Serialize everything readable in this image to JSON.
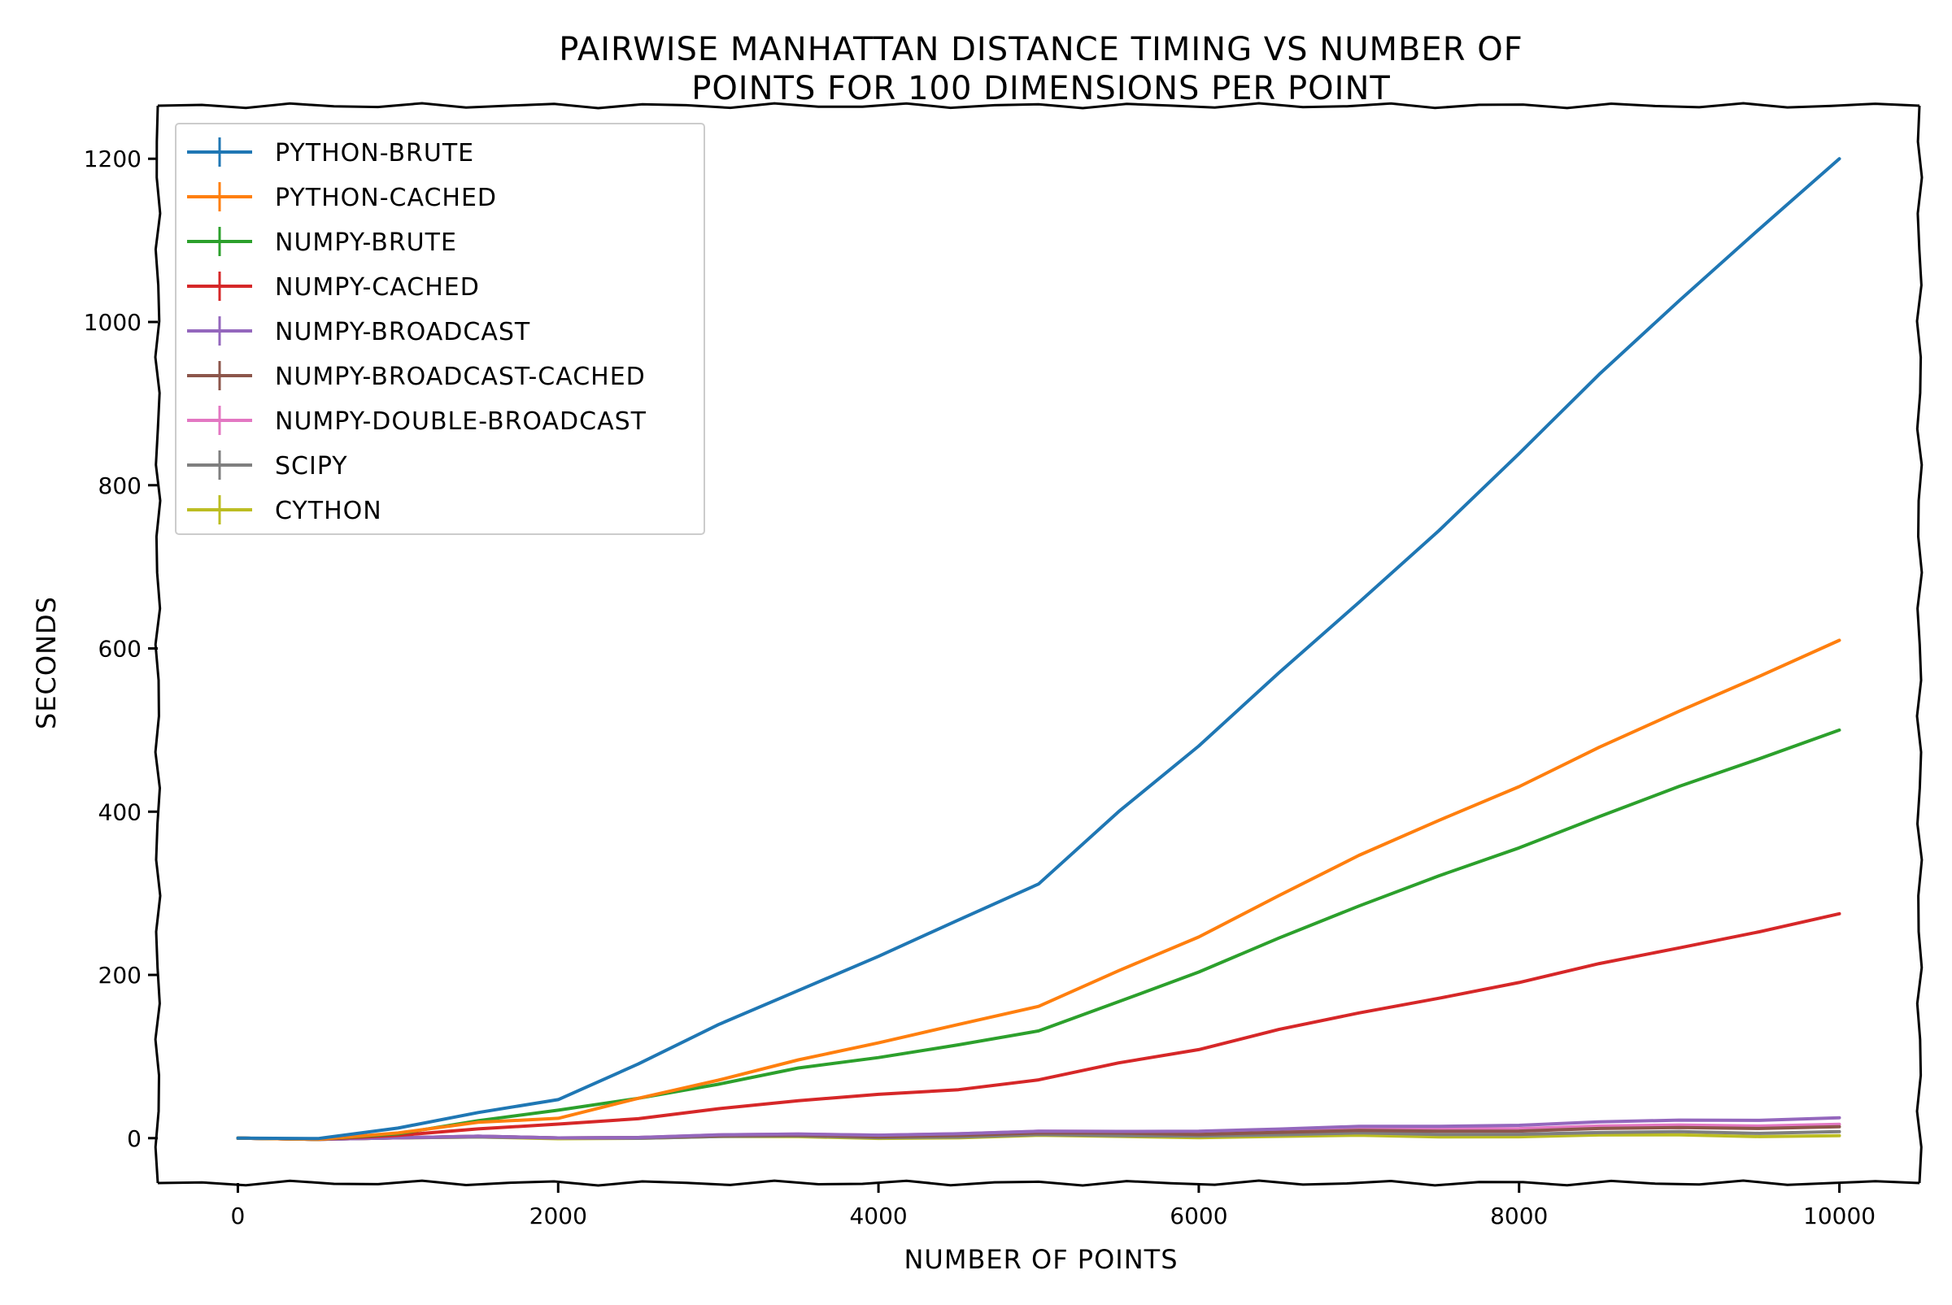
{
  "chart_data": {
    "type": "line",
    "title_lines": [
      "Pairwise Manhattan Distance Timing vs Number of",
      "Points for 100 Dimensions per Point"
    ],
    "xlabel": "Number of Points",
    "ylabel": "Seconds",
    "xlim": [
      -500,
      10500
    ],
    "ylim": [
      -55,
      1265
    ],
    "xticks": [
      0,
      2000,
      4000,
      6000,
      8000,
      10000
    ],
    "yticks": [
      0,
      200,
      400,
      600,
      800,
      1000,
      1200
    ],
    "xtick_labels": [
      "0",
      "2000",
      "4000",
      "6000",
      "8000",
      "10000"
    ],
    "ytick_labels": [
      "0",
      "200",
      "400",
      "600",
      "800",
      "1000",
      "1200"
    ],
    "legend_position": "upper-left",
    "grid": false,
    "x": [
      0,
      500,
      1000,
      1500,
      2000,
      2500,
      3000,
      3500,
      4000,
      4500,
      5000,
      5500,
      6000,
      6500,
      7000,
      7500,
      8000,
      8500,
      9000,
      9500,
      10000
    ],
    "series": [
      {
        "name": "python-brute",
        "color": "#1f77b4",
        "values": [
          0,
          1,
          12,
          30,
          48,
          92,
          138,
          180,
          224,
          268,
          310,
          400,
          482,
          570,
          655,
          745,
          840,
          935,
          1025,
          1115,
          1200
        ]
      },
      {
        "name": "python-cached",
        "color": "#ff7f0e",
        "values": [
          0,
          0,
          6,
          18,
          25,
          50,
          70,
          95,
          118,
          140,
          160,
          205,
          248,
          297,
          345,
          390,
          432,
          478,
          522,
          567,
          610
        ]
      },
      {
        "name": "numpy-brute",
        "color": "#2ca02c",
        "values": [
          0,
          0,
          5,
          20,
          35,
          50,
          65,
          85,
          100,
          115,
          130,
          167,
          205,
          245,
          283,
          322,
          357,
          393,
          430,
          466,
          500
        ]
      },
      {
        "name": "numpy-cached",
        "color": "#d62728",
        "values": [
          0,
          0,
          3,
          10,
          18,
          25,
          35,
          45,
          55,
          60,
          70,
          92,
          110,
          133,
          152,
          172,
          192,
          213,
          232,
          254,
          275
        ]
      },
      {
        "name": "numpy-broadcast",
        "color": "#9467bd",
        "values": [
          0,
          0,
          0,
          1,
          1,
          2,
          3,
          4,
          5,
          6,
          7,
          8,
          10,
          11,
          13,
          15,
          17,
          19,
          21,
          23,
          25
        ]
      },
      {
        "name": "numpy-broadcast-cached",
        "color": "#8c564b",
        "values": [
          0,
          0,
          0,
          1,
          1,
          2,
          2,
          3,
          3,
          4,
          5,
          6,
          6,
          7,
          8,
          9,
          10,
          11,
          12,
          13,
          14
        ]
      },
      {
        "name": "numpy-double-broadcast",
        "color": "#e377c2",
        "values": [
          0,
          0,
          0,
          1,
          1,
          2,
          3,
          4,
          5,
          6,
          7,
          8,
          9,
          10,
          11,
          12,
          13,
          14,
          15,
          16,
          17
        ]
      },
      {
        "name": "scipy",
        "color": "#7f7f7f",
        "values": [
          0,
          0,
          0,
          0,
          1,
          1,
          1,
          2,
          2,
          2,
          3,
          3,
          4,
          4,
          5,
          5,
          6,
          6,
          7,
          7,
          8
        ]
      },
      {
        "name": "cython",
        "color": "#bcbd22",
        "values": [
          0,
          0,
          0,
          0,
          0,
          1,
          1,
          1,
          1,
          1,
          2,
          2,
          2,
          2,
          2,
          2,
          3,
          3,
          3,
          3,
          3
        ]
      }
    ]
  }
}
